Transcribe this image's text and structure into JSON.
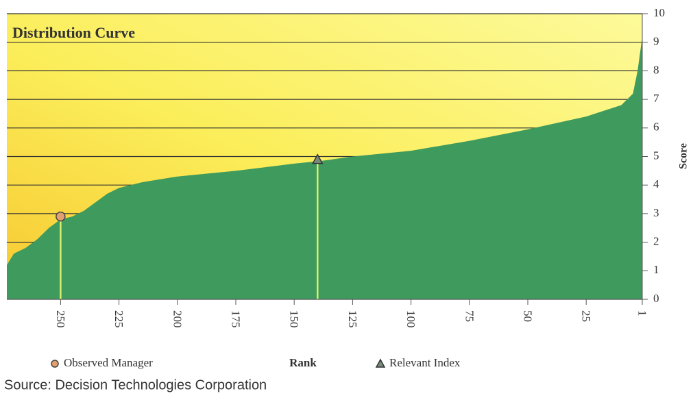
{
  "chart_data": {
    "type": "area",
    "title": "Distribution Curve",
    "x_label": "Rank",
    "y_label": "Score",
    "source": "Source: Decision Technologies Corporation",
    "x": [
      273,
      270,
      265,
      260,
      255,
      250,
      245,
      240,
      235,
      230,
      225,
      215,
      200,
      175,
      150,
      138,
      125,
      100,
      75,
      50,
      25,
      10,
      5,
      3,
      1
    ],
    "values": [
      1.2,
      1.6,
      1.8,
      2.1,
      2.5,
      2.8,
      2.9,
      3.1,
      3.4,
      3.7,
      3.9,
      4.1,
      4.3,
      4.5,
      4.75,
      4.85,
      5.0,
      5.2,
      5.55,
      5.95,
      6.4,
      6.8,
      7.2,
      8.0,
      9.2
    ],
    "color": "#3f9a5e",
    "xlim": [
      273,
      1
    ],
    "xticks": [
      250,
      225,
      200,
      175,
      150,
      125,
      100,
      75,
      50,
      25,
      1
    ],
    "ylim": [
      0,
      10
    ],
    "yticks": [
      0,
      1,
      2,
      3,
      4,
      5,
      6,
      7,
      8,
      9,
      10
    ],
    "grid": true,
    "markers": [
      {
        "name": "Observed Manager",
        "x": 250,
        "value": 2.9,
        "shape": "circle",
        "color": "#e0a070"
      },
      {
        "name": "Relevant Index",
        "x": 140,
        "value": 4.9,
        "shape": "triangle",
        "color": "#7a8a7a"
      }
    ]
  }
}
